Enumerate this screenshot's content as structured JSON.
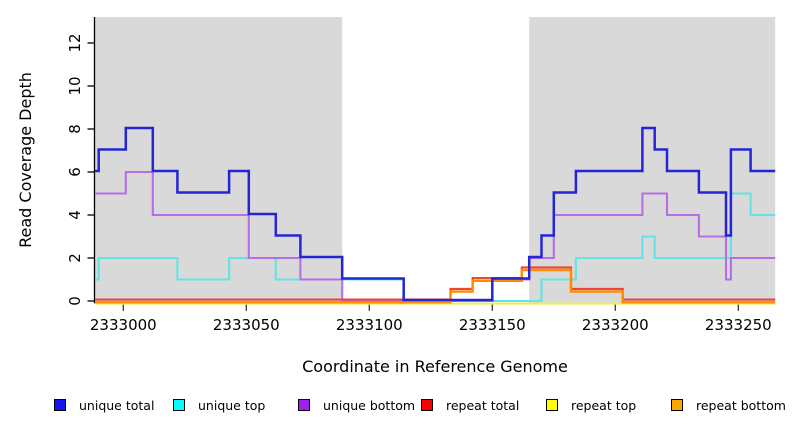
{
  "chart_data": {
    "type": "line",
    "subtype": "step-coverage-plot",
    "title": "",
    "xlabel": "Coordinate in Reference Genome",
    "ylabel": "Read Coverage Depth",
    "xlim": [
      2332988.5,
      2333265
    ],
    "ylim": [
      0,
      13.2
    ],
    "grid": false,
    "legend_position": "bottom",
    "x_ticks": [
      2333000,
      2333050,
      2333100,
      2333150,
      2333200,
      2333250
    ],
    "x_tick_labels": [
      "2333000",
      "2333050",
      "2333100",
      "2333150",
      "2333200",
      "2333250"
    ],
    "y_ticks": [
      0,
      2,
      4,
      6,
      8,
      10,
      12
    ],
    "y_tick_labels": [
      "0",
      "2",
      "4",
      "6",
      "8",
      "10",
      "12"
    ],
    "shading": {
      "color": "#d9d9d9",
      "regions": [
        [
          2332988.5,
          2333089
        ],
        [
          2333165,
          2333265
        ]
      ]
    },
    "series": [
      {
        "name": "unique total",
        "line_color": "#2525d8",
        "legend_color": "#1414ee",
        "steps": [
          [
            2332988.5,
            6
          ],
          [
            2332990,
            7
          ],
          [
            2333001,
            8
          ],
          [
            2333012,
            6
          ],
          [
            2333022,
            5
          ],
          [
            2333043,
            6
          ],
          [
            2333051,
            4
          ],
          [
            2333062,
            3
          ],
          [
            2333072,
            2
          ],
          [
            2333089,
            1
          ],
          [
            2333114,
            0
          ],
          [
            2333150,
            1
          ],
          [
            2333165,
            2
          ],
          [
            2333170,
            3
          ],
          [
            2333175,
            5
          ],
          [
            2333184,
            6
          ],
          [
            2333211,
            8
          ],
          [
            2333216,
            7
          ],
          [
            2333221,
            6
          ],
          [
            2333234,
            5
          ],
          [
            2333245,
            3
          ],
          [
            2333247,
            7
          ],
          [
            2333255,
            6
          ]
        ]
      },
      {
        "name": "unique top",
        "line_color": "#63e3e3",
        "legend_color": "#00ffff",
        "steps": [
          [
            2332988.5,
            1
          ],
          [
            2332990,
            2
          ],
          [
            2333022,
            1
          ],
          [
            2333043,
            2
          ],
          [
            2333062,
            1
          ],
          [
            2333114,
            0
          ],
          [
            2333170,
            1
          ],
          [
            2333184,
            2
          ],
          [
            2333211,
            3
          ],
          [
            2333216,
            2
          ],
          [
            2333247,
            5
          ],
          [
            2333255,
            4
          ]
        ]
      },
      {
        "name": "unique bottom",
        "line_color": "#b66ee6",
        "legend_color": "#a021f0",
        "steps": [
          [
            2332988.5,
            5
          ],
          [
            2333001,
            6
          ],
          [
            2333012,
            4
          ],
          [
            2333051,
            2
          ],
          [
            2333072,
            1
          ],
          [
            2333089,
            0
          ],
          [
            2333150,
            1
          ],
          [
            2333165,
            2
          ],
          [
            2333175,
            4
          ],
          [
            2333211,
            5
          ],
          [
            2333221,
            4
          ],
          [
            2333234,
            3
          ],
          [
            2333245,
            1
          ],
          [
            2333247,
            2
          ]
        ]
      },
      {
        "name": "repeat total",
        "line_color": "#ee4433",
        "legend_color": "#ff0000",
        "steps": [
          [
            2332988.5,
            0
          ],
          [
            2333133,
            0.5
          ],
          [
            2333142,
            1
          ],
          [
            2333162,
            1.5
          ],
          [
            2333182,
            0.5
          ],
          [
            2333203,
            0
          ]
        ]
      },
      {
        "name": "repeat top",
        "line_color": "#eded5c",
        "legend_color": "#ffff00",
        "steps": [
          [
            2332988.5,
            0
          ]
        ]
      },
      {
        "name": "repeat bottom",
        "line_color": "#ff8c00",
        "legend_color": "#ffa500",
        "steps": [
          [
            2332988.5,
            0
          ],
          [
            2333133,
            0.5
          ],
          [
            2333142,
            1
          ],
          [
            2333162,
            1.5
          ],
          [
            2333182,
            0.5
          ],
          [
            2333203,
            0
          ]
        ]
      }
    ]
  }
}
